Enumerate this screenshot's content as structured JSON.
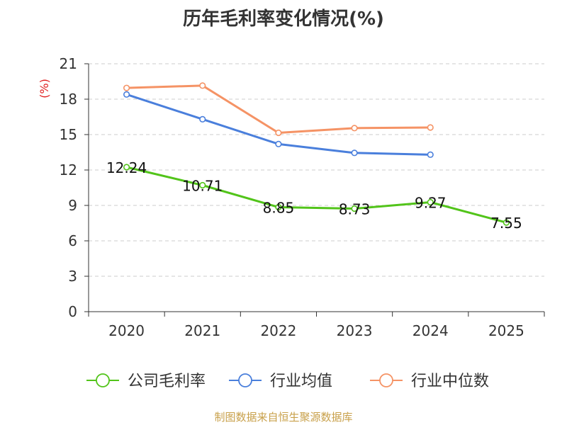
{
  "title": "历年毛利率变化情况(%)",
  "source": "制图数据来自恒生聚源数据库",
  "chart_data": {
    "type": "line",
    "title": "历年毛利率变化情况(%)",
    "xlabel": "",
    "ylabel": "(%)",
    "categories": [
      "2020",
      "2021",
      "2022",
      "2023",
      "2024",
      "2025"
    ],
    "ylim": [
      0,
      21
    ],
    "yticks": [
      0,
      3,
      6,
      9,
      12,
      15,
      18,
      21
    ],
    "grid": true,
    "legend_position": "bottom",
    "series": [
      {
        "name": "公司毛利率",
        "color": "#52c41a",
        "values": [
          12.24,
          10.71,
          8.85,
          8.73,
          9.27,
          7.55
        ],
        "labels": [
          "12.24",
          "10.71",
          "8.85",
          "8.73",
          "9.27",
          "7.55"
        ],
        "show_labels": true
      },
      {
        "name": "行业均值",
        "color": "#4a7fdc",
        "values": [
          18.4,
          16.3,
          14.2,
          13.45,
          13.3,
          null
        ],
        "show_labels": false
      },
      {
        "name": "行业中位数",
        "color": "#f59365",
        "values": [
          18.95,
          19.15,
          15.15,
          15.55,
          15.6,
          null
        ],
        "show_labels": false
      }
    ]
  }
}
